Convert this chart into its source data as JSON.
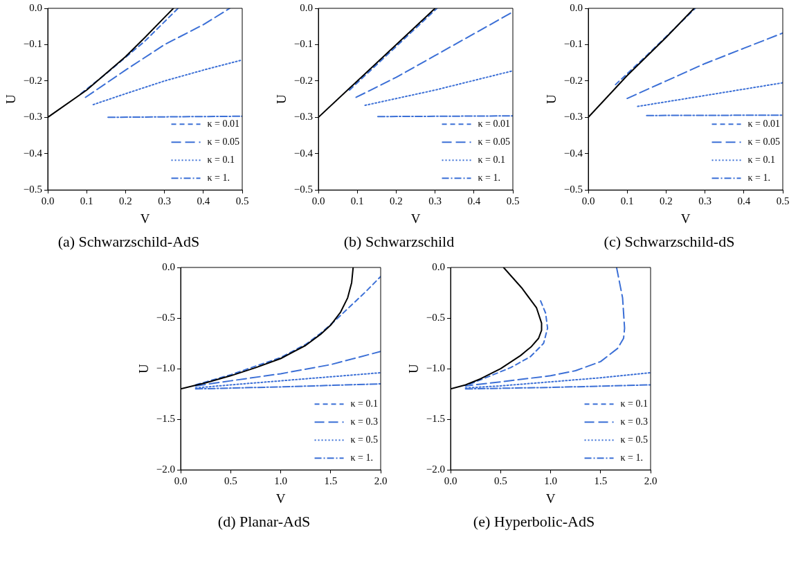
{
  "chart_data": [
    {
      "type": "line",
      "title": "(a) Schwarzschild-AdS",
      "xlabel": "V",
      "ylabel": "U",
      "legend": "bottom right",
      "xlim": [
        0,
        0.5
      ],
      "ylim": [
        -0.5,
        0
      ],
      "xticks": [
        {
          "value": 0,
          "label": "0.0"
        },
        {
          "value": 0.1,
          "label": "0.1"
        },
        {
          "value": 0.2,
          "label": "0.2"
        },
        {
          "value": 0.3,
          "label": "0.3"
        },
        {
          "value": 0.4,
          "label": "0.4"
        },
        {
          "value": 0.5,
          "label": "0.5"
        }
      ],
      "yticks": [
        {
          "value": -0.5,
          "label": "−0.5"
        },
        {
          "value": -0.4,
          "label": "−0.4"
        },
        {
          "value": -0.3,
          "label": "−0.3"
        },
        {
          "value": -0.2,
          "label": "−0.2"
        },
        {
          "value": -0.1,
          "label": "−0.1"
        },
        {
          "value": 0,
          "label": "0.0"
        }
      ],
      "series": [
        {
          "color": "#000000",
          "line_style": "solid",
          "x": [
            0,
            0.1,
            0.2,
            0.25,
            0.3,
            0.323
          ],
          "values": [
            -0.3,
            -0.225,
            -0.133,
            -0.08,
            -0.025,
            0
          ]
        },
        {
          "name": "κ = 0.01",
          "color": "#3b6fd6",
          "line_style": "dashed",
          "x": [
            0.085,
            0.15,
            0.25,
            0.335
          ],
          "values": [
            -0.235,
            -0.18,
            -0.09,
            0
          ]
        },
        {
          "name": "κ = 0.05",
          "color": "#3b6fd6",
          "line_style": "longdash",
          "x": [
            0.097,
            0.2,
            0.3,
            0.4,
            0.468
          ],
          "values": [
            -0.245,
            -0.17,
            -0.1,
            -0.045,
            0
          ]
        },
        {
          "name": "κ = 0.1",
          "color": "#3b6fd6",
          "line_style": "dotted",
          "x": [
            0.117,
            0.2,
            0.3,
            0.4,
            0.5
          ],
          "values": [
            -0.265,
            -0.235,
            -0.2,
            -0.17,
            -0.142
          ]
        },
        {
          "name": "κ = 1.",
          "color": "#3b6fd6",
          "line_style": "dashdot",
          "x": [
            0.155,
            0.5
          ],
          "values": [
            -0.3,
            -0.297
          ]
        }
      ]
    },
    {
      "type": "line",
      "title": "(b) Schwarzschild",
      "xlabel": "V",
      "ylabel": "U",
      "legend": "bottom right",
      "xlim": [
        0,
        0.5
      ],
      "ylim": [
        -0.5,
        0
      ],
      "xticks": [
        {
          "value": 0,
          "label": "0.0"
        },
        {
          "value": 0.1,
          "label": "0.1"
        },
        {
          "value": 0.2,
          "label": "0.2"
        },
        {
          "value": 0.3,
          "label": "0.3"
        },
        {
          "value": 0.4,
          "label": "0.4"
        },
        {
          "value": 0.5,
          "label": "0.5"
        }
      ],
      "yticks": [
        {
          "value": -0.5,
          "label": "−0.5"
        },
        {
          "value": -0.4,
          "label": "−0.4"
        },
        {
          "value": -0.3,
          "label": "−0.3"
        },
        {
          "value": -0.2,
          "label": "−0.2"
        },
        {
          "value": -0.1,
          "label": "−0.1"
        },
        {
          "value": 0,
          "label": "0.0"
        }
      ],
      "series": [
        {
          "color": "#000000",
          "line_style": "solid",
          "x": [
            0,
            0.3
          ],
          "values": [
            -0.3,
            0
          ]
        },
        {
          "name": "κ = 0.01",
          "color": "#3b6fd6",
          "line_style": "dashed",
          "x": [
            0.08,
            0.305
          ],
          "values": [
            -0.225,
            0
          ]
        },
        {
          "name": "κ = 0.05",
          "color": "#3b6fd6",
          "line_style": "longdash",
          "x": [
            0.097,
            0.2,
            0.3,
            0.4,
            0.5
          ],
          "values": [
            -0.245,
            -0.19,
            -0.13,
            -0.07,
            -0.01
          ]
        },
        {
          "name": "κ = 0.1",
          "color": "#3b6fd6",
          "line_style": "dotted",
          "x": [
            0.12,
            0.3,
            0.5
          ],
          "values": [
            -0.267,
            -0.225,
            -0.172
          ]
        },
        {
          "name": "κ = 1.",
          "color": "#3b6fd6",
          "line_style": "dashdot",
          "x": [
            0.153,
            0.5
          ],
          "values": [
            -0.298,
            -0.296
          ]
        }
      ]
    },
    {
      "type": "line",
      "title": "(c) Schwarzschild-dS",
      "xlabel": "V",
      "ylabel": "U",
      "legend": "bottom right",
      "xlim": [
        0,
        0.5
      ],
      "ylim": [
        -0.5,
        0
      ],
      "xticks": [
        {
          "value": 0,
          "label": "0.0"
        },
        {
          "value": 0.1,
          "label": "0.1"
        },
        {
          "value": 0.2,
          "label": "0.2"
        },
        {
          "value": 0.3,
          "label": "0.3"
        },
        {
          "value": 0.4,
          "label": "0.4"
        },
        {
          "value": 0.5,
          "label": "0.5"
        }
      ],
      "yticks": [
        {
          "value": -0.5,
          "label": "−0.5"
        },
        {
          "value": -0.4,
          "label": "−0.4"
        },
        {
          "value": -0.3,
          "label": "−0.3"
        },
        {
          "value": -0.2,
          "label": "−0.2"
        },
        {
          "value": -0.1,
          "label": "−0.1"
        },
        {
          "value": 0,
          "label": "0.0"
        }
      ],
      "series": [
        {
          "color": "#000000",
          "line_style": "solid",
          "x": [
            0,
            0.1,
            0.2,
            0.272
          ],
          "values": [
            -0.3,
            -0.185,
            -0.08,
            0
          ]
        },
        {
          "name": "κ = 0.01",
          "color": "#3b6fd6",
          "line_style": "dashed",
          "x": [
            0.07,
            0.15,
            0.275
          ],
          "values": [
            -0.21,
            -0.13,
            0
          ]
        },
        {
          "name": "κ = 0.05",
          "color": "#3b6fd6",
          "line_style": "longdash",
          "x": [
            0.1,
            0.2,
            0.3,
            0.4,
            0.5
          ],
          "values": [
            -0.248,
            -0.2,
            -0.152,
            -0.11,
            -0.068
          ]
        },
        {
          "name": "κ = 0.1",
          "color": "#3b6fd6",
          "line_style": "dotted",
          "x": [
            0.127,
            0.3,
            0.5
          ],
          "values": [
            -0.27,
            -0.24,
            -0.205
          ]
        },
        {
          "name": "κ = 1.",
          "color": "#3b6fd6",
          "line_style": "dashdot",
          "x": [
            0.15,
            0.5
          ],
          "values": [
            -0.295,
            -0.294
          ]
        }
      ]
    },
    {
      "type": "line",
      "title": "(d) Planar-AdS",
      "xlabel": "V",
      "ylabel": "U",
      "legend": "bottom right",
      "xlim": [
        0,
        2
      ],
      "ylim": [
        -2,
        0
      ],
      "xticks": [
        {
          "value": 0,
          "label": "0.0"
        },
        {
          "value": 0.5,
          "label": "0.5"
        },
        {
          "value": 1,
          "label": "1.0"
        },
        {
          "value": 1.5,
          "label": "1.5"
        },
        {
          "value": 2,
          "label": "2.0"
        }
      ],
      "yticks": [
        {
          "value": -2,
          "label": "−2.0"
        },
        {
          "value": -1.5,
          "label": "−1.5"
        },
        {
          "value": -1,
          "label": "−1.0"
        },
        {
          "value": -0.5,
          "label": "−0.5"
        },
        {
          "value": 0,
          "label": "0.0"
        }
      ],
      "series": [
        {
          "color": "#000000",
          "line_style": "solid",
          "x": [
            0,
            0.25,
            0.5,
            0.75,
            1,
            1.25,
            1.4,
            1.5,
            1.6,
            1.67,
            1.71,
            1.725
          ],
          "values": [
            -1.2,
            -1.14,
            -1.07,
            -0.99,
            -0.9,
            -0.77,
            -0.66,
            -0.57,
            -0.44,
            -0.3,
            -0.15,
            0
          ]
        },
        {
          "name": "κ = 0.1",
          "color": "#3b6fd6",
          "line_style": "dashed",
          "x": [
            0.15,
            0.5,
            1,
            1.25,
            1.4,
            1.55,
            1.7,
            1.85,
            2
          ],
          "values": [
            -1.16,
            -1.06,
            -0.89,
            -0.76,
            -0.65,
            -0.52,
            -0.38,
            -0.24,
            -0.09
          ]
        },
        {
          "name": "κ = 0.3",
          "color": "#3b6fd6",
          "line_style": "longdash",
          "x": [
            0.15,
            0.5,
            1,
            1.5,
            2
          ],
          "values": [
            -1.17,
            -1.12,
            -1.05,
            -0.96,
            -0.83
          ]
        },
        {
          "name": "κ = 0.5",
          "color": "#3b6fd6",
          "line_style": "dotted",
          "x": [
            0.15,
            0.5,
            1,
            1.5,
            2
          ],
          "values": [
            -1.19,
            -1.16,
            -1.12,
            -1.08,
            -1.04
          ]
        },
        {
          "name": "κ = 1.",
          "color": "#3b6fd6",
          "line_style": "dashdot",
          "x": [
            0.15,
            1,
            2
          ],
          "values": [
            -1.2,
            -1.18,
            -1.15
          ]
        }
      ]
    },
    {
      "type": "line",
      "title": "(e) Hyperbolic-AdS",
      "xlabel": "V",
      "ylabel": "U",
      "legend": "bottom right",
      "xlim": [
        0,
        2
      ],
      "ylim": [
        -2,
        0
      ],
      "xticks": [
        {
          "value": 0,
          "label": "0.0"
        },
        {
          "value": 0.5,
          "label": "0.5"
        },
        {
          "value": 1,
          "label": "1.0"
        },
        {
          "value": 1.5,
          "label": "1.5"
        },
        {
          "value": 2,
          "label": "2.0"
        }
      ],
      "yticks": [
        {
          "value": -2,
          "label": "−2.0"
        },
        {
          "value": -1.5,
          "label": "−1.5"
        },
        {
          "value": -1,
          "label": "−1.0"
        },
        {
          "value": -0.5,
          "label": "−0.5"
        },
        {
          "value": 0,
          "label": "0.0"
        }
      ],
      "series": [
        {
          "color": "#000000",
          "line_style": "solid",
          "x": [
            0.53,
            0.71,
            0.86,
            0.91,
            0.91,
            0.88,
            0.81,
            0.7,
            0.5,
            0.3,
            0.15,
            0
          ],
          "values": [
            0,
            -0.2,
            -0.4,
            -0.55,
            -0.62,
            -0.7,
            -0.78,
            -0.87,
            -1,
            -1.1,
            -1.16,
            -1.2
          ]
        },
        {
          "name": "κ = 0.1",
          "color": "#3b6fd6",
          "line_style": "dashed",
          "x": [
            0.9,
            0.95,
            0.97,
            0.93,
            0.8,
            0.6,
            0.4,
            0.15
          ],
          "values": [
            -0.33,
            -0.45,
            -0.6,
            -0.75,
            -0.88,
            -0.99,
            -1.07,
            -1.17
          ]
        },
        {
          "name": "κ = 0.3",
          "color": "#3b6fd6",
          "line_style": "longdash",
          "x": [
            1.66,
            1.72,
            1.74,
            1.73,
            1.67,
            1.5,
            1.25,
            1,
            0.5,
            0.15
          ],
          "values": [
            0,
            -0.3,
            -0.6,
            -0.7,
            -0.8,
            -0.93,
            -1.02,
            -1.07,
            -1.13,
            -1.17
          ]
        },
        {
          "name": "κ = 0.5",
          "color": "#3b6fd6",
          "line_style": "dotted",
          "x": [
            0.15,
            0.5,
            1,
            1.5,
            2
          ],
          "values": [
            -1.19,
            -1.17,
            -1.13,
            -1.09,
            -1.04
          ]
        },
        {
          "name": "κ = 1.",
          "color": "#3b6fd6",
          "line_style": "dashdot",
          "x": [
            0.15,
            1,
            2
          ],
          "values": [
            -1.2,
            -1.185,
            -1.16
          ]
        }
      ]
    }
  ]
}
